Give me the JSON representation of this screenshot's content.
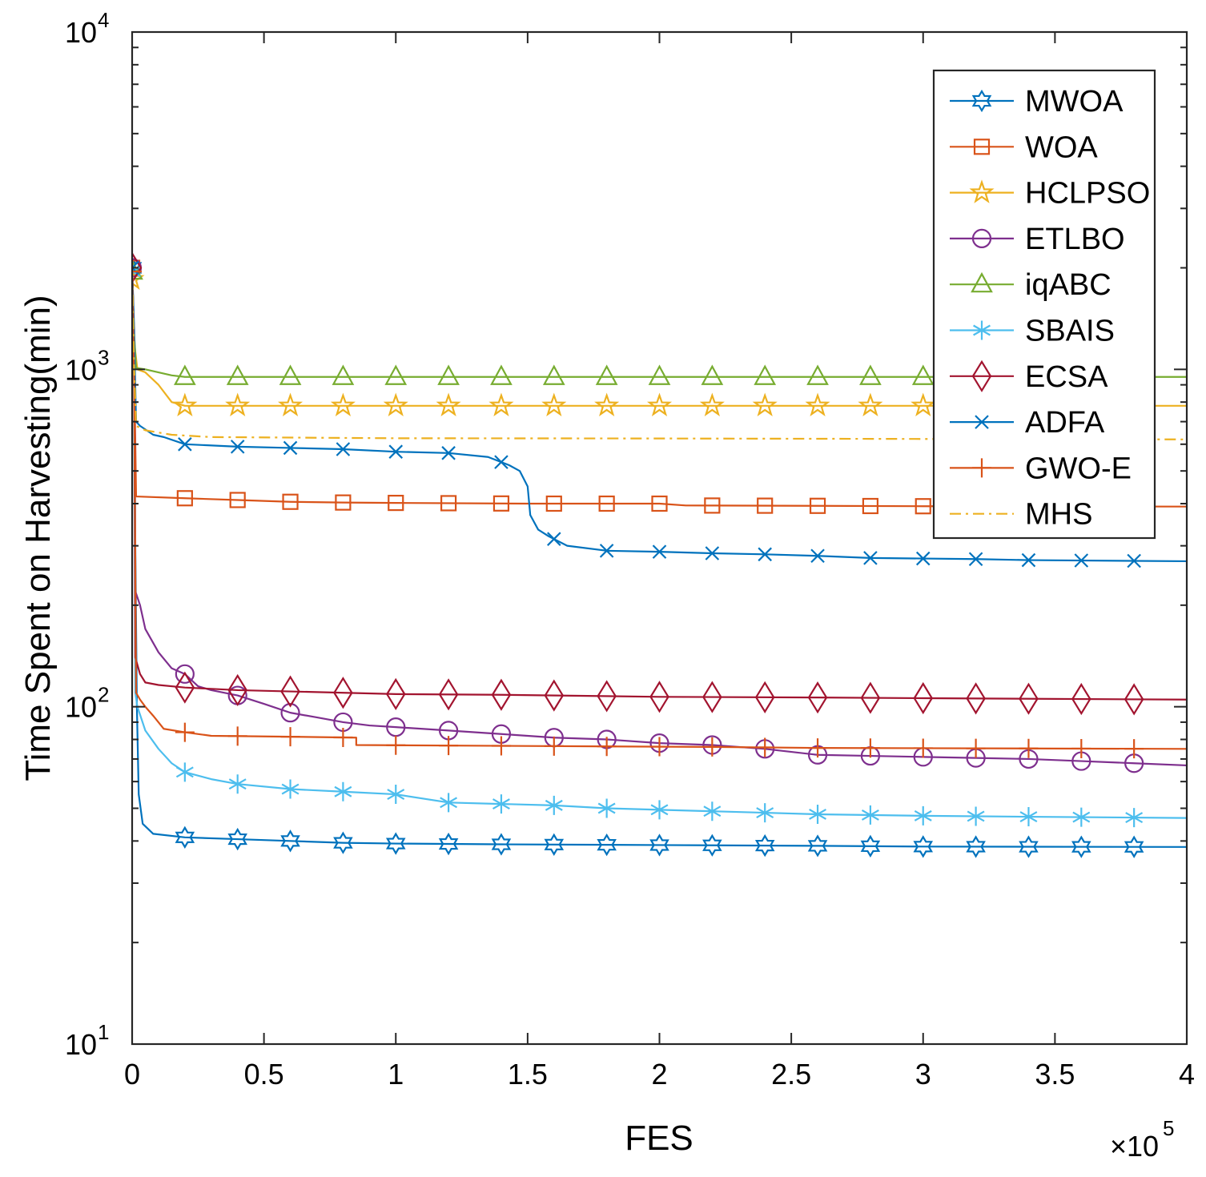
{
  "chart_data": {
    "type": "line",
    "title": "",
    "xlabel": "FES",
    "ylabel": "Time Spent on Harvesting(min)",
    "x_scale": "linear",
    "y_scale": "log",
    "xlim": [
      0,
      400000
    ],
    "ylim": [
      10,
      10000
    ],
    "x_ticks": [
      0,
      50000,
      100000,
      150000,
      200000,
      250000,
      300000,
      350000,
      400000
    ],
    "x_tick_labels": [
      "0",
      "0.5",
      "1",
      "1.5",
      "2",
      "2.5",
      "3",
      "3.5",
      "4"
    ],
    "x_multiplier": {
      "base": "×10",
      "exp": "5"
    },
    "y_ticks": [
      {
        "value": 10,
        "base": "10",
        "exp": "1"
      },
      {
        "value": 100,
        "base": "10",
        "exp": "2"
      },
      {
        "value": 1000,
        "base": "10",
        "exp": "3"
      },
      {
        "value": 10000,
        "base": "10",
        "exp": "4"
      }
    ],
    "grid": false,
    "legend_position": "top-right",
    "series": [
      {
        "name": "MWOA",
        "color": "#0072BD",
        "marker": "hexagram",
        "dash": "solid",
        "points": [
          [
            0,
            2000
          ],
          [
            800,
            1300
          ],
          [
            1200,
            300
          ],
          [
            1800,
            100
          ],
          [
            2500,
            55
          ],
          [
            4000,
            45
          ],
          [
            8000,
            42
          ],
          [
            20000,
            41
          ],
          [
            40000,
            40.5
          ],
          [
            60000,
            40
          ],
          [
            80000,
            39.5
          ],
          [
            100000,
            39.3
          ],
          [
            140000,
            39.1
          ],
          [
            200000,
            38.9
          ],
          [
            260000,
            38.7
          ],
          [
            300000,
            38.5
          ],
          [
            400000,
            38.4
          ]
        ],
        "markers_x": [
          0,
          20000,
          40000,
          60000,
          80000,
          100000,
          120000,
          140000,
          160000,
          180000,
          200000,
          220000,
          240000,
          260000,
          280000,
          300000,
          320000,
          340000,
          360000,
          380000
        ]
      },
      {
        "name": "WOA",
        "color": "#D95319",
        "marker": "square",
        "dash": "solid",
        "points": [
          [
            0,
            2000
          ],
          [
            800,
            1000
          ],
          [
            1500,
            420
          ],
          [
            20000,
            415
          ],
          [
            40000,
            410
          ],
          [
            60000,
            405
          ],
          [
            80000,
            403
          ],
          [
            100000,
            402
          ],
          [
            150000,
            400
          ],
          [
            200000,
            400
          ],
          [
            210000,
            395
          ],
          [
            260000,
            394
          ],
          [
            300000,
            393
          ],
          [
            400000,
            392
          ]
        ],
        "markers_x": [
          0,
          20000,
          40000,
          60000,
          80000,
          100000,
          120000,
          140000,
          160000,
          180000,
          200000,
          220000,
          240000,
          260000,
          280000,
          300000,
          320000,
          340000,
          360000,
          380000
        ]
      },
      {
        "name": "HCLPSO",
        "color": "#EDB120",
        "marker": "pentagram",
        "dash": "solid",
        "points": [
          [
            0,
            1850
          ],
          [
            800,
            1200
          ],
          [
            2000,
            1000
          ],
          [
            5000,
            980
          ],
          [
            10000,
            900
          ],
          [
            15000,
            800
          ],
          [
            20000,
            780
          ],
          [
            400000,
            780
          ]
        ],
        "markers_x": [
          0,
          20000,
          40000,
          60000,
          80000,
          100000,
          120000,
          140000,
          160000,
          180000,
          200000,
          220000,
          240000,
          260000,
          280000,
          300000,
          320000,
          340000,
          360000,
          380000
        ]
      },
      {
        "name": "ETLBO",
        "color": "#7E2F8E",
        "marker": "circle",
        "dash": "solid",
        "points": [
          [
            0,
            2000
          ],
          [
            800,
            1200
          ],
          [
            1200,
            220
          ],
          [
            3000,
            200
          ],
          [
            5000,
            170
          ],
          [
            10000,
            145
          ],
          [
            15000,
            130
          ],
          [
            20000,
            125
          ],
          [
            25000,
            115
          ],
          [
            30000,
            112
          ],
          [
            40000,
            108
          ],
          [
            50000,
            102
          ],
          [
            60000,
            96
          ],
          [
            70000,
            93
          ],
          [
            80000,
            90
          ],
          [
            90000,
            88
          ],
          [
            100000,
            87
          ],
          [
            120000,
            85
          ],
          [
            140000,
            83
          ],
          [
            160000,
            81
          ],
          [
            180000,
            80
          ],
          [
            200000,
            78
          ],
          [
            220000,
            77
          ],
          [
            240000,
            75
          ],
          [
            260000,
            72
          ],
          [
            280000,
            71.5
          ],
          [
            300000,
            71
          ],
          [
            320000,
            70.5
          ],
          [
            340000,
            70
          ],
          [
            360000,
            69
          ],
          [
            380000,
            68
          ],
          [
            400000,
            67
          ]
        ],
        "markers_x": [
          0,
          20000,
          40000,
          60000,
          80000,
          100000,
          120000,
          140000,
          160000,
          180000,
          200000,
          220000,
          240000,
          260000,
          280000,
          300000,
          320000,
          340000,
          360000,
          380000
        ]
      },
      {
        "name": "iqABC",
        "color": "#77AC30",
        "marker": "triangle",
        "dash": "solid",
        "points": [
          [
            0,
            1950
          ],
          [
            700,
            1300
          ],
          [
            1500,
            1010
          ],
          [
            5000,
            1000
          ],
          [
            15000,
            960
          ],
          [
            20000,
            950
          ],
          [
            400000,
            950
          ]
        ],
        "markers_x": [
          0,
          20000,
          40000,
          60000,
          80000,
          100000,
          120000,
          140000,
          160000,
          180000,
          200000,
          220000,
          240000,
          260000,
          280000,
          300000,
          320000,
          340000,
          360000,
          380000
        ]
      },
      {
        "name": "SBAIS",
        "color": "#4DBEEE",
        "marker": "asterisk",
        "dash": "solid",
        "points": [
          [
            0,
            1950
          ],
          [
            700,
            1000
          ],
          [
            1200,
            110
          ],
          [
            2000,
            100
          ],
          [
            5000,
            85
          ],
          [
            10000,
            75
          ],
          [
            15000,
            68
          ],
          [
            20000,
            64
          ],
          [
            30000,
            61
          ],
          [
            40000,
            59
          ],
          [
            60000,
            57
          ],
          [
            80000,
            56
          ],
          [
            100000,
            55
          ],
          [
            120000,
            52
          ],
          [
            140000,
            51.5
          ],
          [
            160000,
            51
          ],
          [
            180000,
            50
          ],
          [
            200000,
            49.5
          ],
          [
            240000,
            48.5
          ],
          [
            260000,
            48
          ],
          [
            300000,
            47.5
          ],
          [
            340000,
            47.2
          ],
          [
            400000,
            46.8
          ]
        ],
        "markers_x": [
          0,
          20000,
          40000,
          60000,
          80000,
          100000,
          120000,
          140000,
          160000,
          180000,
          200000,
          220000,
          240000,
          260000,
          280000,
          300000,
          320000,
          340000,
          360000,
          380000
        ]
      },
      {
        "name": "ECSA",
        "color": "#A2142F",
        "marker": "diamond",
        "dash": "solid",
        "points": [
          [
            0,
            2000
          ],
          [
            800,
            1200
          ],
          [
            1200,
            140
          ],
          [
            3000,
            125
          ],
          [
            5000,
            118
          ],
          [
            10000,
            116
          ],
          [
            20000,
            114
          ],
          [
            40000,
            112
          ],
          [
            60000,
            111
          ],
          [
            100000,
            109
          ],
          [
            140000,
            108.5
          ],
          [
            200000,
            107
          ],
          [
            260000,
            106.5
          ],
          [
            300000,
            106
          ],
          [
            400000,
            105
          ]
        ],
        "markers_x": [
          0,
          20000,
          40000,
          60000,
          80000,
          100000,
          120000,
          140000,
          160000,
          180000,
          200000,
          220000,
          240000,
          260000,
          280000,
          300000,
          320000,
          340000,
          360000,
          380000
        ]
      },
      {
        "name": "ADFA",
        "color": "#0072BD",
        "marker": "x",
        "dash": "solid",
        "points": [
          [
            0,
            2000
          ],
          [
            800,
            1200
          ],
          [
            1500,
            700
          ],
          [
            3000,
            680
          ],
          [
            8000,
            640
          ],
          [
            12000,
            630
          ],
          [
            20000,
            600
          ],
          [
            40000,
            590
          ],
          [
            60000,
            585
          ],
          [
            80000,
            580
          ],
          [
            100000,
            570
          ],
          [
            120000,
            565
          ],
          [
            135000,
            550
          ],
          [
            143000,
            520
          ],
          [
            147000,
            500
          ],
          [
            150000,
            450
          ],
          [
            151000,
            370
          ],
          [
            154000,
            335
          ],
          [
            158000,
            320
          ],
          [
            165000,
            300
          ],
          [
            180000,
            290
          ],
          [
            200000,
            288
          ],
          [
            220000,
            285
          ],
          [
            240000,
            283
          ],
          [
            260000,
            280
          ],
          [
            280000,
            276
          ],
          [
            300000,
            275
          ],
          [
            320000,
            274
          ],
          [
            340000,
            272
          ],
          [
            400000,
            270
          ]
        ],
        "markers_x": [
          0,
          20000,
          40000,
          60000,
          80000,
          100000,
          120000,
          140000,
          160000,
          180000,
          200000,
          220000,
          240000,
          260000,
          280000,
          300000,
          320000,
          340000,
          360000,
          380000
        ]
      },
      {
        "name": "GWO-E",
        "color": "#D95319",
        "marker": "plus",
        "dash": "solid",
        "points": [
          [
            0,
            1950
          ],
          [
            800,
            900
          ],
          [
            1500,
            110
          ],
          [
            3000,
            105
          ],
          [
            5000,
            100
          ],
          [
            8000,
            94
          ],
          [
            12000,
            86
          ],
          [
            20000,
            84
          ],
          [
            30000,
            82
          ],
          [
            60000,
            81.5
          ],
          [
            85000,
            81
          ],
          [
            85000,
            77
          ],
          [
            150000,
            76.5
          ],
          [
            220000,
            76
          ],
          [
            260000,
            75.5
          ],
          [
            400000,
            75
          ]
        ],
        "markers_x": [
          0,
          20000,
          40000,
          60000,
          80000,
          100000,
          120000,
          140000,
          160000,
          180000,
          200000,
          220000,
          240000,
          260000,
          280000,
          300000,
          320000,
          340000,
          360000,
          380000
        ]
      },
      {
        "name": "MHS",
        "color": "#EDB120",
        "marker": "none",
        "dash": "dashdot",
        "points": [
          [
            0,
            1950
          ],
          [
            800,
            1000
          ],
          [
            1500,
            680
          ],
          [
            5000,
            660
          ],
          [
            15000,
            640
          ],
          [
            30000,
            630
          ],
          [
            100000,
            625
          ],
          [
            200000,
            624
          ],
          [
            300000,
            622
          ],
          [
            400000,
            620
          ]
        ],
        "markers_x": []
      }
    ]
  }
}
